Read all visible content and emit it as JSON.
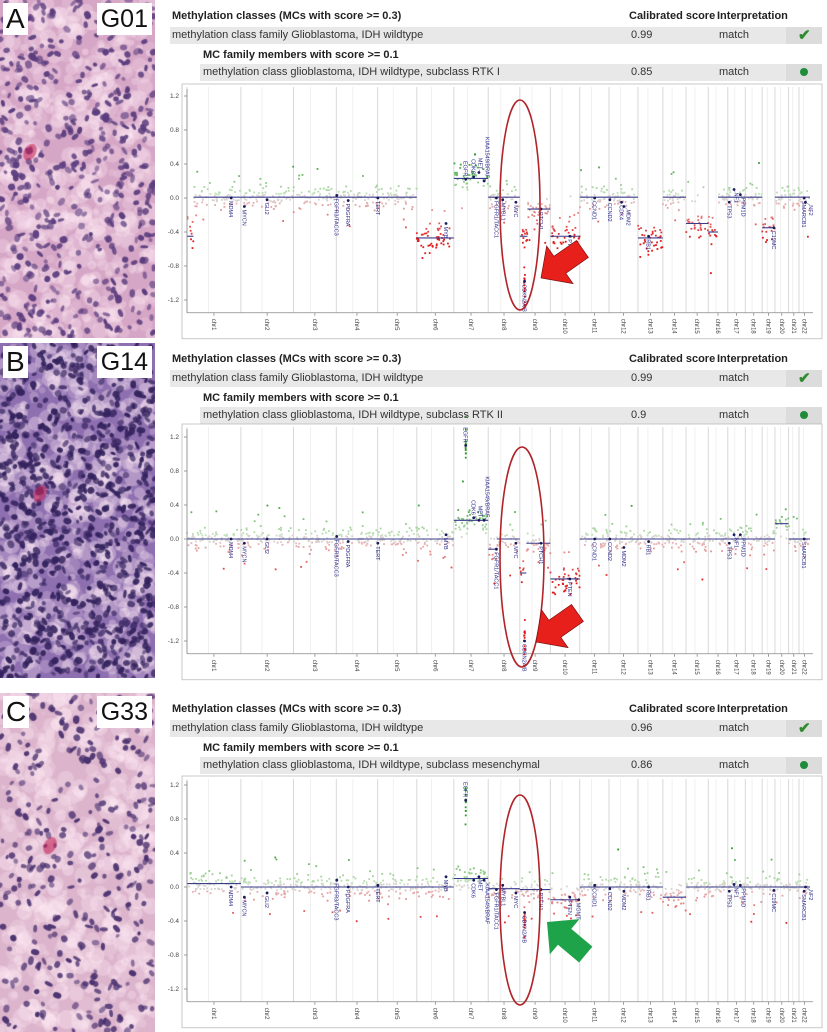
{
  "panels": [
    {
      "letter": "A",
      "sample": "G01",
      "histology": {
        "background": "#d6a6c6",
        "nuclei": "#5b3d7e",
        "density": 0.55
      },
      "table": {
        "header": "Methylation classes (MCs with score >= 0.3)",
        "score_header": "Calibrated score",
        "interp_header": "Interpretation",
        "class_row": {
          "name": "methylation class family Glioblastoma, IDH wildtype",
          "score": "0.99",
          "interpretation": "match",
          "icon": "check-icon"
        },
        "subheader": "MC family members with score >= 0.1",
        "member_row": {
          "name": "methylation class glioblastoma, IDH wildtype, subclass RTK I",
          "score": "0.85",
          "interpretation": "match",
          "icon": "dot-icon"
        }
      },
      "arrow_color": "#e8201c",
      "highlight": "chr9 CDKN2A/B"
    },
    {
      "letter": "B",
      "sample": "G14",
      "histology": {
        "background": "#8e6fb0",
        "nuclei": "#34235e",
        "density": 1.0
      },
      "table": {
        "header": "Methylation classes (MCs with score >= 0.3)",
        "score_header": "Calibrated score",
        "interp_header": "Interpretation",
        "class_row": {
          "name": "methylation class family Glioblastoma, IDH wildtype",
          "score": "0.99",
          "interpretation": "match",
          "icon": "check-icon"
        },
        "subheader": "MC family members with score >= 0.1",
        "member_row": {
          "name": "methylation class glioblastoma, IDH wildtype, subclass RTK II",
          "score": "0.9",
          "interpretation": "match",
          "icon": "dot-icon"
        }
      },
      "arrow_color": "#e8201c",
      "highlight": "chr9 CDKN2A/B"
    },
    {
      "letter": "C",
      "sample": "G33",
      "histology": {
        "background": "#dcb4cc",
        "nuclei": "#4b3270",
        "density": 0.35
      },
      "table": {
        "header": "Methylation classes (MCs with score >= 0.3)",
        "score_header": "Calibrated score",
        "interp_header": "Interpretation",
        "class_row": {
          "name": "methylation class family Glioblastoma, IDH wildtype",
          "score": "0.96",
          "interpretation": "match",
          "icon": "check-icon"
        },
        "subheader": "MC family members with score >= 0.1",
        "member_row": {
          "name": "methylation class glioblastoma, IDH wildtype, subclass mesenchymal",
          "score": "0.86",
          "interpretation": "match",
          "icon": "dot-icon"
        }
      },
      "arrow_color": "#1fa34a",
      "highlight": "chr9 CDKN2A/B"
    }
  ],
  "chart_data": [
    {
      "type": "scatter",
      "panel": "A",
      "yticks": [
        "1.2",
        "0.8",
        "0.4",
        "0.0",
        "-0.4",
        "-0.8",
        "-1.2"
      ],
      "ylim": [
        -1.4,
        1.3
      ],
      "grid": "vertical chromosome boundaries",
      "chromosomes": [
        "chr1",
        "chr2",
        "chr3",
        "chr4",
        "chr5",
        "chr6",
        "chr7",
        "chr8",
        "chr9",
        "chr10",
        "chr11",
        "chr12",
        "chr13",
        "chr14",
        "chr15",
        "chr16",
        "chr17",
        "chr18",
        "chr19",
        "chr20",
        "chr21",
        "chr22"
      ],
      "baseline": 0.01,
      "segments": [
        {
          "chr": "chr1",
          "start_mb": 0,
          "end_mb": 30,
          "value": -0.45
        },
        {
          "chr": "chr6",
          "start_mb": 0,
          "end_mb": 171,
          "value": -0.47
        },
        {
          "chr": "chr7",
          "start_mb": 0,
          "end_mb": 159,
          "value": 0.23
        },
        {
          "chr": "chr9",
          "start_mb": 0,
          "end_mb": 35,
          "value": -0.45
        },
        {
          "chr": "chr9",
          "start_mb": 20,
          "end_mb": 24,
          "value": -1.0
        },
        {
          "chr": "chr9",
          "start_mb": 35,
          "end_mb": 141,
          "value": -0.13
        },
        {
          "chr": "chr10",
          "start_mb": 0,
          "end_mb": 136,
          "value": -0.45
        },
        {
          "chr": "chr13",
          "start_mb": 0,
          "end_mb": 115,
          "value": -0.47
        },
        {
          "chr": "chr15",
          "start_mb": 0,
          "end_mb": 103,
          "value": -0.3
        },
        {
          "chr": "chr16",
          "start_mb": 0,
          "end_mb": 45,
          "value": -0.4
        },
        {
          "chr": "chr19",
          "start_mb": 0,
          "end_mb": 59,
          "value": -0.35
        }
      ],
      "genes": [
        {
          "name": "MDM4",
          "chr": "chr1",
          "pos_mb": 204,
          "value": 0.0
        },
        {
          "name": "MYCN",
          "chr": "chr2",
          "pos_mb": 16,
          "value": -0.1
        },
        {
          "name": "GLI2",
          "chr": "chr2",
          "pos_mb": 121,
          "value": -0.02
        },
        {
          "name": "FGFR3/TACC3",
          "chr": "chr4",
          "pos_mb": 2,
          "value": 0.03
        },
        {
          "name": "PDGFRA",
          "chr": "chr4",
          "pos_mb": 55,
          "value": -0.03
        },
        {
          "name": "TERT",
          "chr": "chr5",
          "pos_mb": 1,
          "value": 0.0
        },
        {
          "name": "MYB",
          "chr": "chr6",
          "pos_mb": 135,
          "value": -0.3
        },
        {
          "name": "EGFR",
          "chr": "chr7",
          "pos_mb": 55,
          "value": 0.22
        },
        {
          "name": "CDK6",
          "chr": "chr7",
          "pos_mb": 92,
          "value": 0.25
        },
        {
          "name": "MET",
          "chr": "chr7",
          "pos_mb": 116,
          "value": 0.3
        },
        {
          "name": "KIAA1549/BRAF",
          "chr": "chr7",
          "pos_mb": 140,
          "value": 0.2
        },
        {
          "name": "FGFR1/TACC1",
          "chr": "chr8",
          "pos_mb": 38,
          "value": 0.0
        },
        {
          "name": "MYBL1",
          "chr": "chr8",
          "pos_mb": 67,
          "value": -0.02
        },
        {
          "name": "MYC",
          "chr": "chr8",
          "pos_mb": 128,
          "value": -0.05
        },
        {
          "name": "CDKN2A/B",
          "chr": "chr9",
          "pos_mb": 22,
          "value": -0.98
        },
        {
          "name": "PTCH1",
          "chr": "chr9",
          "pos_mb": 98,
          "value": -0.13
        },
        {
          "name": "PTEN",
          "chr": "chr10",
          "pos_mb": 90,
          "value": -0.45
        },
        {
          "name": "CCND1",
          "chr": "chr11",
          "pos_mb": 69,
          "value": 0.0
        },
        {
          "name": "CCND2",
          "chr": "chr12",
          "pos_mb": 4,
          "value": -0.02
        },
        {
          "name": "CDK4",
          "chr": "chr12",
          "pos_mb": 58,
          "value": -0.05
        },
        {
          "name": "MDM2",
          "chr": "chr12",
          "pos_mb": 69,
          "value": -0.1
        },
        {
          "name": "RB1",
          "chr": "chr13",
          "pos_mb": 49,
          "value": -0.45
        },
        {
          "name": "TP53",
          "chr": "chr17",
          "pos_mb": 7,
          "value": -0.05
        },
        {
          "name": "NF1",
          "chr": "chr17",
          "pos_mb": 29,
          "value": 0.1
        },
        {
          "name": "PPM1D",
          "chr": "chr17",
          "pos_mb": 58,
          "value": 0.04
        },
        {
          "name": "C19MC",
          "chr": "chr19",
          "pos_mb": 54,
          "value": -0.35
        },
        {
          "name": "SMARCB1",
          "chr": "chr22",
          "pos_mb": 24,
          "value": 0.0
        },
        {
          "name": "NF2",
          "chr": "chr22",
          "pos_mb": 30,
          "value": -0.05
        }
      ]
    },
    {
      "type": "scatter",
      "panel": "B",
      "yticks": [
        "1.2",
        "0.8",
        "0.4",
        "0.0",
        "-0.4",
        "-0.8",
        "-1.2"
      ],
      "ylim": [
        -1.4,
        1.3
      ],
      "grid": "vertical chromosome boundaries",
      "chromosomes": [
        "chr1",
        "chr2",
        "chr3",
        "chr4",
        "chr5",
        "chr6",
        "chr7",
        "chr8",
        "chr9",
        "chr10",
        "chr11",
        "chr12",
        "chr13",
        "chr14",
        "chr15",
        "chr16",
        "chr17",
        "chr18",
        "chr19",
        "chr20",
        "chr21",
        "chr22"
      ],
      "baseline": 0.0,
      "segments": [
        {
          "chr": "chr7",
          "start_mb": 0,
          "end_mb": 159,
          "value": 0.22
        },
        {
          "chr": "chr7",
          "start_mb": 54,
          "end_mb": 56,
          "value": 1.1
        },
        {
          "chr": "chr8",
          "start_mb": 0,
          "end_mb": 40,
          "value": -0.12
        },
        {
          "chr": "chr9",
          "start_mb": 0,
          "end_mb": 30,
          "value": -0.4
        },
        {
          "chr": "chr9",
          "start_mb": 20,
          "end_mb": 24,
          "value": -1.2
        },
        {
          "chr": "chr9",
          "start_mb": 30,
          "end_mb": 141,
          "value": -0.05
        },
        {
          "chr": "chr10",
          "start_mb": 0,
          "end_mb": 136,
          "value": -0.47
        },
        {
          "chr": "chr20",
          "start_mb": 0,
          "end_mb": 63,
          "value": 0.18
        }
      ],
      "genes": [
        {
          "name": "MDM4",
          "chr": "chr1",
          "pos_mb": 204,
          "value": 0.0
        },
        {
          "name": "MYCN",
          "chr": "chr2",
          "pos_mb": 16,
          "value": -0.05
        },
        {
          "name": "GLI2",
          "chr": "chr2",
          "pos_mb": 121,
          "value": 0.0
        },
        {
          "name": "FGFR3/TACC3",
          "chr": "chr4",
          "pos_mb": 2,
          "value": 0.03
        },
        {
          "name": "PDGFRA",
          "chr": "chr4",
          "pos_mb": 55,
          "value": -0.03
        },
        {
          "name": "TERT",
          "chr": "chr5",
          "pos_mb": 1,
          "value": -0.05
        },
        {
          "name": "MYB",
          "chr": "chr6",
          "pos_mb": 135,
          "value": 0.05
        },
        {
          "name": "EGFR",
          "chr": "chr7",
          "pos_mb": 55,
          "value": 1.1
        },
        {
          "name": "CDK6",
          "chr": "chr7",
          "pos_mb": 92,
          "value": 0.25
        },
        {
          "name": "MET",
          "chr": "chr7",
          "pos_mb": 116,
          "value": 0.22
        },
        {
          "name": "KIAA1549/BRAF",
          "chr": "chr7",
          "pos_mb": 140,
          "value": 0.22
        },
        {
          "name": "FGFR1/TACC1",
          "chr": "chr8",
          "pos_mb": 38,
          "value": -0.12
        },
        {
          "name": "MYC",
          "chr": "chr8",
          "pos_mb": 128,
          "value": -0.05
        },
        {
          "name": "CDKN2A/B",
          "chr": "chr9",
          "pos_mb": 22,
          "value": -1.2
        },
        {
          "name": "PTCH1",
          "chr": "chr9",
          "pos_mb": 98,
          "value": -0.05
        },
        {
          "name": "PTEN",
          "chr": "chr10",
          "pos_mb": 90,
          "value": -0.47
        },
        {
          "name": "CCND1",
          "chr": "chr11",
          "pos_mb": 69,
          "value": 0.0
        },
        {
          "name": "CCND2",
          "chr": "chr12",
          "pos_mb": 4,
          "value": 0.0
        },
        {
          "name": "MDM2",
          "chr": "chr12",
          "pos_mb": 69,
          "value": -0.1
        },
        {
          "name": "RB1",
          "chr": "chr13",
          "pos_mb": 49,
          "value": -0.03
        },
        {
          "name": "TP53",
          "chr": "chr17",
          "pos_mb": 7,
          "value": -0.05
        },
        {
          "name": "NF1",
          "chr": "chr17",
          "pos_mb": 29,
          "value": 0.05
        },
        {
          "name": "PPM1D",
          "chr": "chr17",
          "pos_mb": 58,
          "value": 0.05
        },
        {
          "name": "SMARCB1",
          "chr": "chr22",
          "pos_mb": 24,
          "value": 0.0
        }
      ]
    },
    {
      "type": "scatter",
      "panel": "C",
      "yticks": [
        "1.2",
        "0.8",
        "0.4",
        "0.0",
        "-0.4",
        "-0.8",
        "-1.2"
      ],
      "ylim": [
        -1.4,
        1.3
      ],
      "grid": "vertical chromosome boundaries",
      "chromosomes": [
        "chr1",
        "chr2",
        "chr3",
        "chr4",
        "chr5",
        "chr6",
        "chr7",
        "chr8",
        "chr9",
        "chr10",
        "chr11",
        "chr12",
        "chr13",
        "chr14",
        "chr15",
        "chr16",
        "chr17",
        "chr18",
        "chr19",
        "chr20",
        "chr21",
        "chr22"
      ],
      "baseline": 0.0,
      "segments": [
        {
          "chr": "chr1",
          "start_mb": 0,
          "end_mb": 249,
          "value": 0.04
        },
        {
          "chr": "chr7",
          "start_mb": 0,
          "end_mb": 159,
          "value": 0.1
        },
        {
          "chr": "chr7",
          "start_mb": 54,
          "end_mb": 56,
          "value": 1.02
        },
        {
          "chr": "chr8",
          "start_mb": 0,
          "end_mb": 146,
          "value": -0.02
        },
        {
          "chr": "chr9",
          "start_mb": 0,
          "end_mb": 141,
          "value": -0.03
        },
        {
          "chr": "chr9",
          "start_mb": 20,
          "end_mb": 24,
          "value": -0.3
        },
        {
          "chr": "chr10",
          "start_mb": 0,
          "end_mb": 136,
          "value": -0.15
        },
        {
          "chr": "chr14",
          "start_mb": 0,
          "end_mb": 107,
          "value": -0.12
        }
      ],
      "genes": [
        {
          "name": "MDM4",
          "chr": "chr1",
          "pos_mb": 204,
          "value": 0.0
        },
        {
          "name": "MYCN",
          "chr": "chr2",
          "pos_mb": 16,
          "value": -0.12
        },
        {
          "name": "GLI2",
          "chr": "chr2",
          "pos_mb": 121,
          "value": -0.07
        },
        {
          "name": "FGFR3/TACC3",
          "chr": "chr4",
          "pos_mb": 2,
          "value": 0.08
        },
        {
          "name": "PDGFRA",
          "chr": "chr4",
          "pos_mb": 55,
          "value": 0.0
        },
        {
          "name": "TERT",
          "chr": "chr5",
          "pos_mb": 1,
          "value": 0.02
        },
        {
          "name": "MYB",
          "chr": "chr6",
          "pos_mb": 135,
          "value": 0.12
        },
        {
          "name": "EGFR",
          "chr": "chr7",
          "pos_mb": 55,
          "value": 1.02
        },
        {
          "name": "CDK6",
          "chr": "chr7",
          "pos_mb": 92,
          "value": 0.08
        },
        {
          "name": "MET",
          "chr": "chr7",
          "pos_mb": 116,
          "value": 0.12
        },
        {
          "name": "KIAA1549/BRAF",
          "chr": "chr7",
          "pos_mb": 140,
          "value": 0.08
        },
        {
          "name": "FGFR1/TACC1",
          "chr": "chr8",
          "pos_mb": 38,
          "value": -0.03
        },
        {
          "name": "MYBL1",
          "chr": "chr8",
          "pos_mb": 67,
          "value": 0.02
        },
        {
          "name": "MYC",
          "chr": "chr8",
          "pos_mb": 128,
          "value": -0.07
        },
        {
          "name": "CDKN2A/B",
          "chr": "chr9",
          "pos_mb": 22,
          "value": -0.3
        },
        {
          "name": "PTCH1",
          "chr": "chr9",
          "pos_mb": 98,
          "value": -0.03
        },
        {
          "name": "PTEN",
          "chr": "chr10",
          "pos_mb": 90,
          "value": -0.12
        },
        {
          "name": "MGMT",
          "chr": "chr10",
          "pos_mb": 131,
          "value": -0.15
        },
        {
          "name": "CCND1",
          "chr": "chr11",
          "pos_mb": 69,
          "value": 0.02
        },
        {
          "name": "CCND2",
          "chr": "chr12",
          "pos_mb": 4,
          "value": -0.02
        },
        {
          "name": "MDM2",
          "chr": "chr12",
          "pos_mb": 69,
          "value": -0.05
        },
        {
          "name": "RB1",
          "chr": "chr13",
          "pos_mb": 49,
          "value": 0.0
        },
        {
          "name": "TP53",
          "chr": "chr17",
          "pos_mb": 7,
          "value": -0.05
        },
        {
          "name": "NF1",
          "chr": "chr17",
          "pos_mb": 29,
          "value": 0.03
        },
        {
          "name": "PPM1D",
          "chr": "chr17",
          "pos_mb": 58,
          "value": 0.02
        },
        {
          "name": "C19MC",
          "chr": "chr19",
          "pos_mb": 54,
          "value": -0.04
        },
        {
          "name": "SMARCB1",
          "chr": "chr22",
          "pos_mb": 24,
          "value": -0.05
        },
        {
          "name": "NF2",
          "chr": "chr22",
          "pos_mb": 30,
          "value": 0.0
        }
      ]
    }
  ]
}
